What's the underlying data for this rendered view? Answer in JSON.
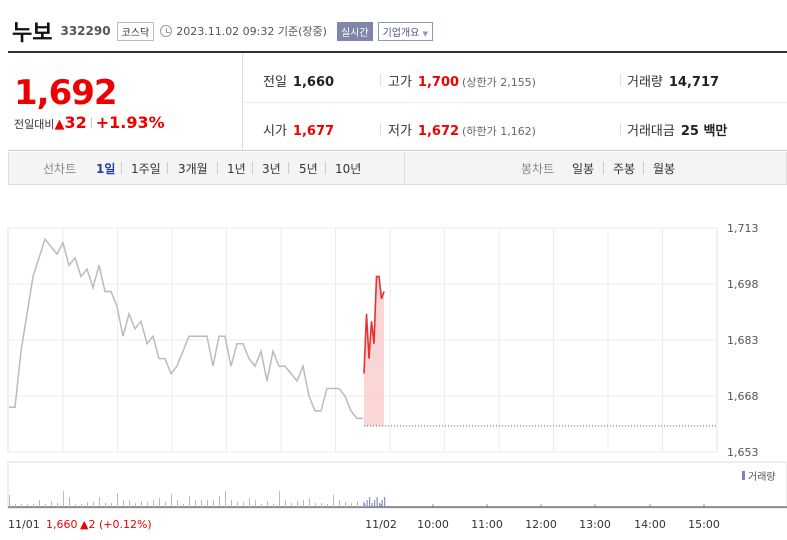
{
  "header": {
    "name": "누보",
    "code": "332290",
    "market": "코스닥",
    "datetime": "2023.11.02 09:32 기준(장중)",
    "realtime": "실시간",
    "company_info": "기업개요"
  },
  "summary": {
    "price": "1,692",
    "change_label": "전일대비",
    "change_value": "32",
    "change_pct": "+1.93%",
    "prev_label": "전일",
    "prev_value": "1,660",
    "high_label": "고가",
    "high_value": "1,700",
    "upper_limit": "(상한가 2,155)",
    "volume_label": "거래량",
    "volume_value": "14,717",
    "open_label": "시가",
    "open_value": "1,677",
    "low_label": "저가",
    "low_value": "1,672",
    "lower_limit": "(하한가 1,162)",
    "amount_label": "거래대금",
    "amount_value": "25 백만"
  },
  "tabs": {
    "line_label": "선차트",
    "line_items": [
      "1일",
      "1주일",
      "3개월",
      "1년",
      "3년",
      "5년",
      "10년"
    ],
    "candle_label": "봉차트",
    "candle_items": [
      "일봉",
      "주봉",
      "월봉"
    ],
    "selected": "1일"
  },
  "chart_data": {
    "type": "line",
    "yticks": [
      "1,713",
      "1,698",
      "1,683",
      "1,668",
      "1,653"
    ],
    "ylim": [
      1653,
      1713
    ],
    "xticks": [
      "11/02",
      "10:00",
      "11:00",
      "12:00",
      "13:00",
      "14:00",
      "15:00"
    ],
    "volume_label": "거래량",
    "prev_day_label": "11/01",
    "prev_day_close": "1,660",
    "prev_day_change": "▲2 (+0.12%)",
    "prev_close": 1660,
    "series": [
      {
        "values": [
          1665,
          1665,
          1680,
          1690,
          1700,
          1705,
          1710,
          1708,
          1706,
          1709,
          1703,
          1705,
          1700,
          1702,
          1697,
          1703,
          1696,
          1696,
          1692,
          1684,
          1690,
          1686,
          1688,
          1682,
          1684,
          1678,
          1678,
          1674,
          1676,
          1680,
          1684,
          1684,
          1684,
          1684,
          1676,
          1684,
          1684,
          1676,
          1682,
          1682,
          1678,
          1676,
          1680,
          1672,
          1680,
          1676,
          1676,
          1674,
          1672,
          1676,
          1668,
          1664,
          1664,
          1670,
          1670,
          1670,
          1668,
          1664,
          1662,
          1662
        ],
        "color": "#bbbbbb"
      },
      {
        "values": [
          1674,
          1690,
          1678,
          1688,
          1682,
          1700,
          1700,
          1694,
          1696
        ],
        "color": "#e83030"
      }
    ]
  }
}
